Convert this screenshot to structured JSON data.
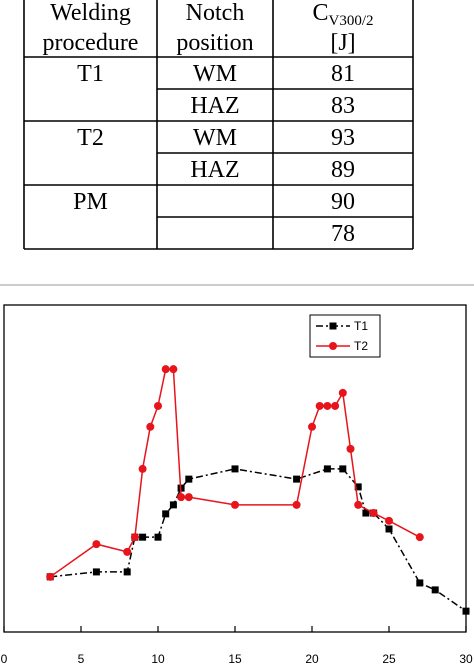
{
  "table": {
    "header": [
      {
        "line1": "Welding",
        "line2": "procedure"
      },
      {
        "line1": "Notch",
        "line2": "position"
      },
      {
        "main": "C",
        "sub": "V300/2",
        "line2": "[J]"
      }
    ],
    "groups": [
      {
        "procedure": "T1",
        "rows": [
          {
            "notch": "WM",
            "cv": 81
          },
          {
            "notch": "HAZ",
            "cv": 83
          }
        ]
      },
      {
        "procedure": "T2",
        "rows": [
          {
            "notch": "WM",
            "cv": 93
          },
          {
            "notch": "HAZ",
            "cv": 89
          }
        ]
      },
      {
        "procedure": "PM",
        "rows": [
          {
            "notch": null,
            "cv": 90
          },
          {
            "notch": null,
            "cv": 78
          }
        ]
      }
    ]
  },
  "chart_data": {
    "type": "line",
    "xlim": [
      0,
      30
    ],
    "xticks": [
      0,
      5,
      10,
      15,
      20,
      25,
      30
    ],
    "ylim": [
      0,
      8
    ],
    "legend": "upper-right",
    "series": [
      {
        "name": "T1",
        "color": "#000000",
        "marker": "square",
        "dash": "dashdot",
        "x": [
          3,
          6,
          8,
          8.5,
          9,
          10,
          10.5,
          11,
          11.5,
          12,
          15,
          19,
          21,
          22,
          23,
          23.5,
          24,
          25,
          27,
          28,
          30
        ],
        "values": [
          1.35,
          1.47,
          1.47,
          2.32,
          2.32,
          2.32,
          2.89,
          3.11,
          3.52,
          3.74,
          3.99,
          3.74,
          3.99,
          3.99,
          3.55,
          2.91,
          2.91,
          2.52,
          1.2,
          1.03,
          0.51
        ]
      },
      {
        "name": "T2",
        "color": "#e8141c",
        "marker": "circle",
        "dash": "solid",
        "x": [
          3,
          6,
          8,
          8.5,
          9,
          9.5,
          10,
          10.5,
          11,
          11.5,
          12,
          15,
          19,
          20,
          20.5,
          21,
          21.5,
          22,
          22.5,
          23,
          24,
          25,
          27
        ],
        "values": [
          1.35,
          2.15,
          1.96,
          2.32,
          3.99,
          5.02,
          5.53,
          6.43,
          6.43,
          3.3,
          3.3,
          3.11,
          3.11,
          5.02,
          5.53,
          5.53,
          5.53,
          5.85,
          4.48,
          3.11,
          2.91,
          2.72,
          2.32
        ]
      }
    ]
  }
}
